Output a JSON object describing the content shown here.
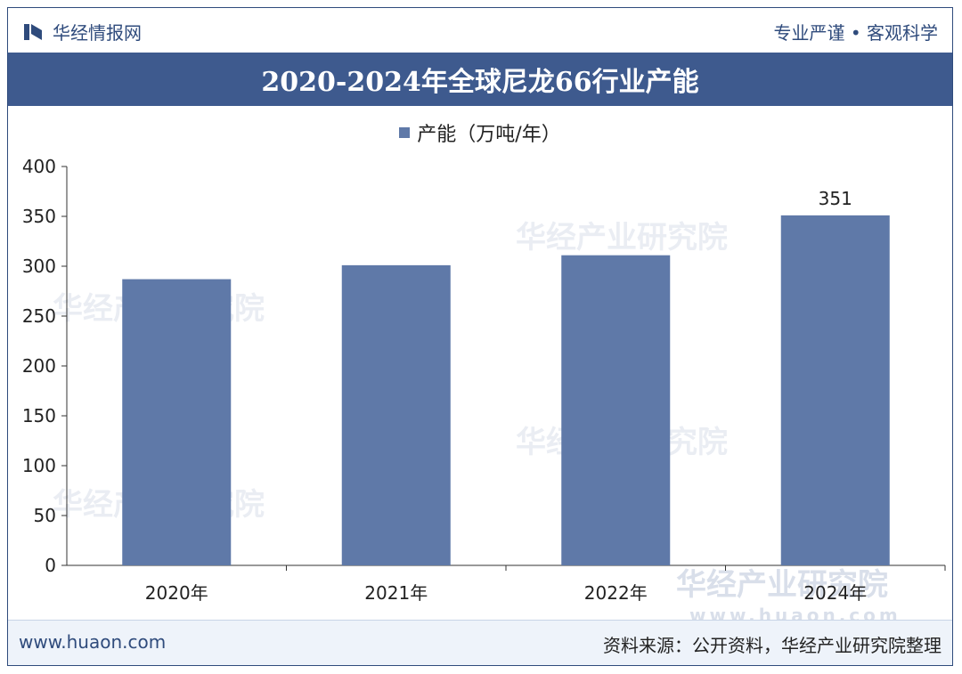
{
  "header": {
    "brand": "华经情报网",
    "slogan": "专业严谨 • 客观科学",
    "title": "2020-2024年全球尼龙66行业产能"
  },
  "footer": {
    "site": "www.huaon.com",
    "source": "资料来源：公开资料，华经产业研究院整理"
  },
  "watermarks": {
    "text": "华经产业研究院",
    "url": "www.huaon.com"
  },
  "colors": {
    "bar": "#5f79a8",
    "title_bg": "#3e5a8e",
    "brand": "#2f4b7c"
  },
  "chart_data": {
    "type": "bar",
    "title": "2020-2024年全球尼龙66行业产能",
    "categories": [
      "2020年",
      "2021年",
      "2022年",
      "2024年"
    ],
    "series": [
      {
        "name": "产能（万吨/年）",
        "values": [
          287,
          301,
          311,
          351
        ]
      }
    ],
    "data_labels": [
      "",
      "",
      "",
      "351"
    ],
    "ylim": [
      0,
      400
    ],
    "yticks": [
      0,
      50,
      100,
      150,
      200,
      250,
      300,
      350,
      400
    ],
    "grid": false,
    "legend": "top-center"
  }
}
